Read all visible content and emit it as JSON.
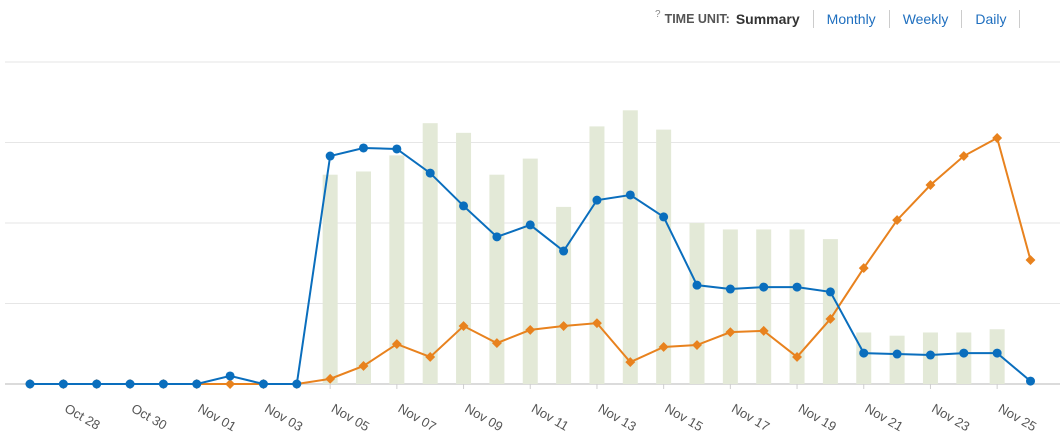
{
  "header": {
    "help": "?",
    "label": "TIME UNIT:",
    "options": [
      "Summary",
      "Monthly",
      "Weekly",
      "Daily"
    ]
  },
  "chart_data": {
    "type": "bar-line",
    "categories": [
      null,
      "Oct 28",
      null,
      "Oct 30",
      null,
      "Nov 01",
      null,
      "Nov 03",
      null,
      "Nov 05",
      null,
      "Nov 07",
      null,
      "Nov 09",
      null,
      "Nov 11",
      null,
      "Nov 13",
      null,
      "Nov 15",
      null,
      "Nov 17",
      null,
      "Nov 19",
      null,
      "Nov 21",
      null,
      "Nov 23",
      null,
      "Nov 25",
      null
    ],
    "series": [
      {
        "kind": "bar",
        "color": "#e3e9d7",
        "values": [
          null,
          null,
          null,
          null,
          null,
          null,
          null,
          null,
          null,
          65,
          66,
          71,
          81,
          78,
          65,
          70,
          55,
          80,
          85,
          79,
          50,
          48,
          48,
          48,
          45,
          16,
          15,
          16,
          16,
          17,
          null
        ]
      },
      {
        "kind": "line",
        "marker": "diamond",
        "color": "#e8821e",
        "values": [
          0,
          0,
          0,
          0,
          0,
          0,
          0,
          0,
          0,
          1.6,
          5.6,
          12.4,
          8.4,
          18,
          12.7,
          16.8,
          18,
          18.9,
          6.8,
          11.5,
          12.1,
          16.1,
          16.5,
          8.4,
          20.2,
          36,
          50.9,
          61.8,
          70.8,
          76.4,
          38.5
        ]
      },
      {
        "kind": "line",
        "marker": "circle",
        "color": "#0a6ebd",
        "values": [
          0,
          0,
          0,
          0,
          0,
          0,
          2.5,
          0,
          0,
          70.8,
          73.3,
          73,
          65.5,
          55.3,
          45.7,
          49.4,
          41.3,
          57.1,
          58.7,
          51.9,
          30.7,
          29.5,
          30.1,
          30.1,
          28.6,
          9.6,
          9.3,
          9,
          9.6,
          9.6,
          0.9
        ]
      }
    ],
    "ylim": [
      0,
      100
    ],
    "yticks": [
      0,
      25,
      50,
      75,
      100
    ],
    "grid": true
  }
}
